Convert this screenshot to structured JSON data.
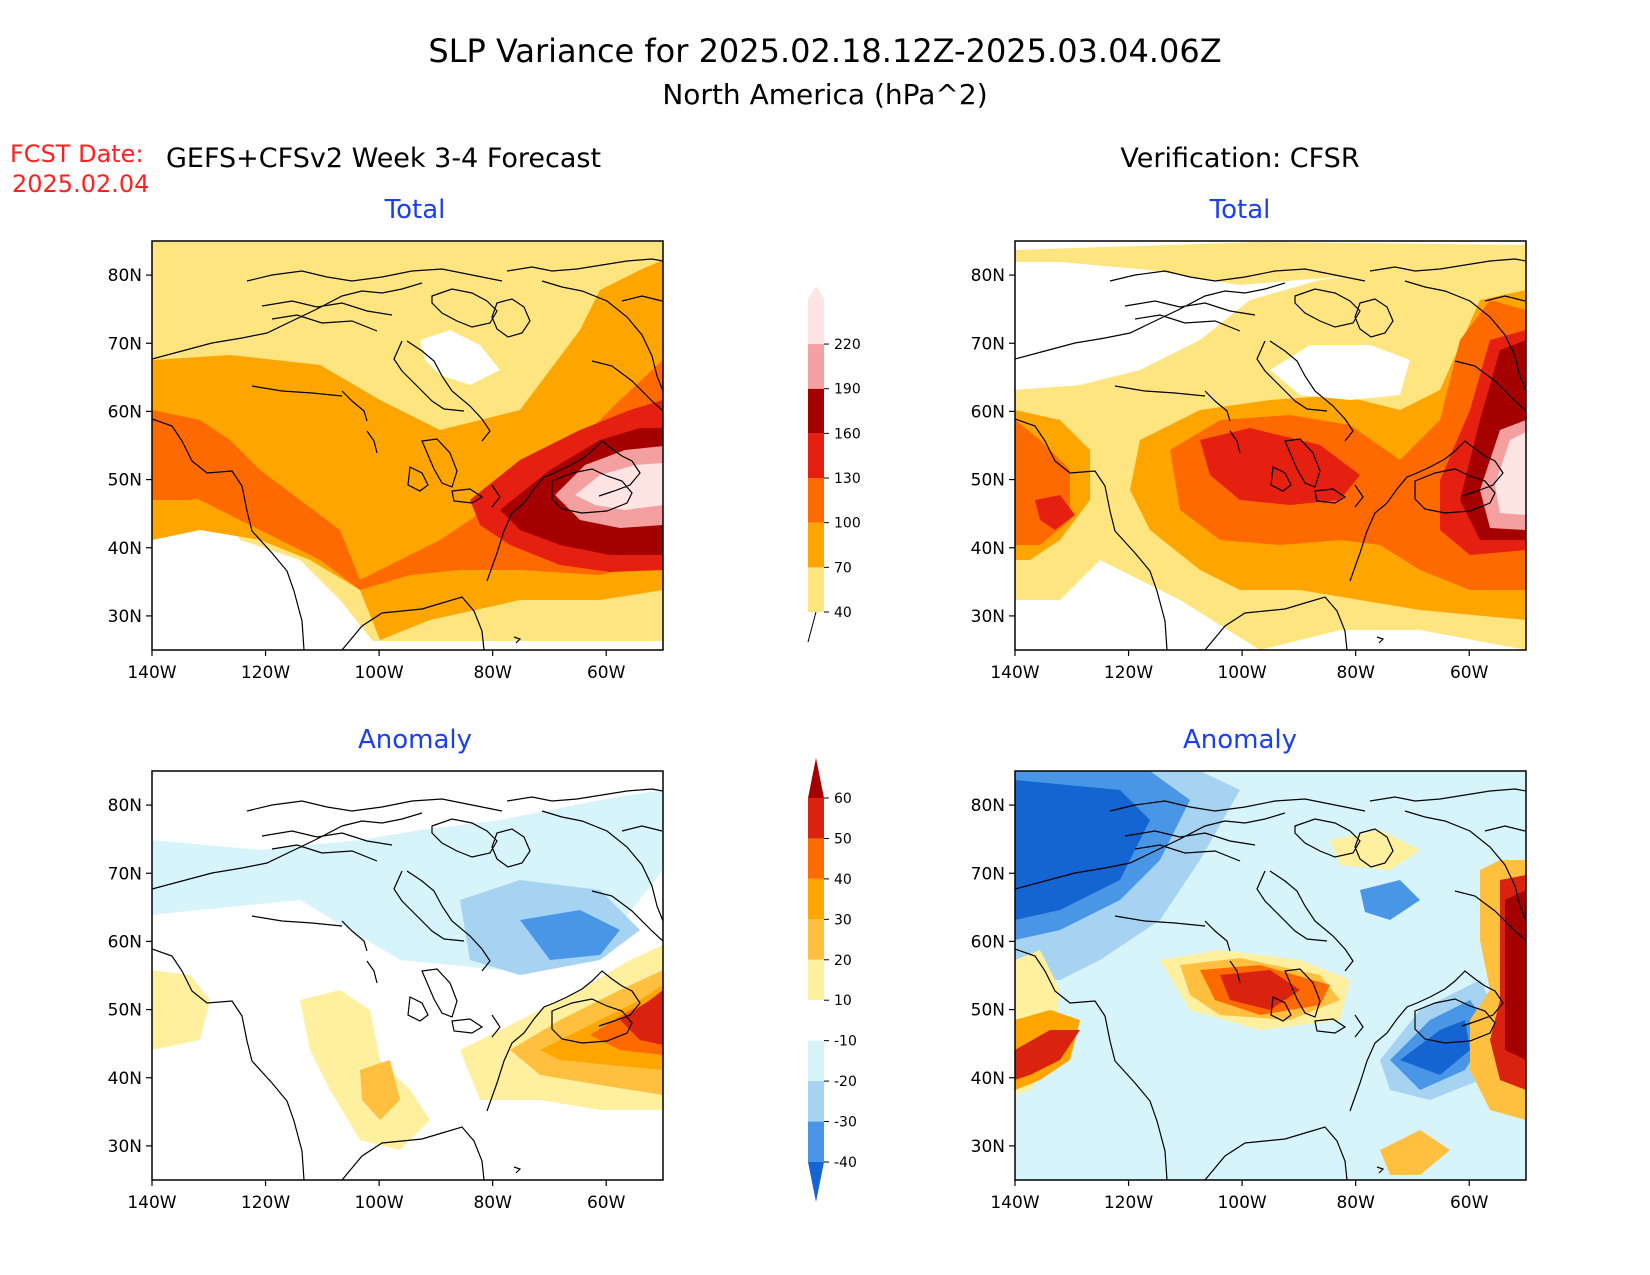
{
  "figure": {
    "title_line1": "SLP Variance for 2025.02.18.12Z-2025.03.04.06Z",
    "title_line2": "North America (hPa^2)",
    "fcst_date_label": "FCST Date:",
    "fcst_date_value": "2025.02.04",
    "left_header": "GEFS+CFSv2 Week 3-4 Forecast",
    "right_header": "Verification: CFSR"
  },
  "panels": {
    "fcst_total_title": "Total",
    "fcst_anomaly_title": "Anomaly",
    "ver_total_title": "Total",
    "ver_anomaly_title": "Anomaly"
  },
  "axes": {
    "lat_labels": [
      "80N",
      "70N",
      "60N",
      "50N",
      "40N",
      "30N"
    ],
    "lat_values": [
      80,
      70,
      60,
      50,
      40,
      30
    ],
    "lon_labels": [
      "140W",
      "120W",
      "100W",
      "80W",
      "60W"
    ],
    "lon_values": [
      -140,
      -120,
      -100,
      -80,
      -60
    ],
    "lon_range": [
      -140,
      -50
    ],
    "lat_range": [
      25,
      85
    ]
  },
  "colorbars": {
    "total": {
      "labels": [
        "40",
        "70",
        "100",
        "130",
        "160",
        "190",
        "220"
      ],
      "colors": [
        "#ffe57f",
        "#ffa500",
        "#ff6a00",
        "#e62010",
        "#a50000",
        "#f5a0a0",
        "#ffe4e4"
      ]
    },
    "anomaly": {
      "labels": [
        "60",
        "50",
        "40",
        "30",
        "20",
        "10",
        "-10",
        "-20",
        "-30",
        "-40"
      ],
      "colors": [
        "#a50000",
        "#d9230f",
        "#ff6a00",
        "#ffa500",
        "#ffc040",
        "#fff0a0",
        "#ffffff",
        "#d7f4fb",
        "#a6d3f2",
        "#4a96e6",
        "#1464d2"
      ]
    }
  },
  "field_colors": {
    "t40": "#ffe57f",
    "t70": "#ffa500",
    "t100": "#ff6a00",
    "t130": "#e62010",
    "t160": "#a50000",
    "t190": "#f5a0a0",
    "t220": "#ffe4e4",
    "a10p": "#fff0a0",
    "a20p": "#ffc040",
    "a30p": "#ffa500",
    "a40p": "#ff6a00",
    "a50p": "#d9230f",
    "a60p": "#a50000",
    "a10n": "#d7f4fb",
    "a20n": "#a6d3f2",
    "a30n": "#4a96e6",
    "a40n": "#1464d2",
    "title_blue": "#1a3ff0",
    "fcst_red": "#ff2020"
  }
}
